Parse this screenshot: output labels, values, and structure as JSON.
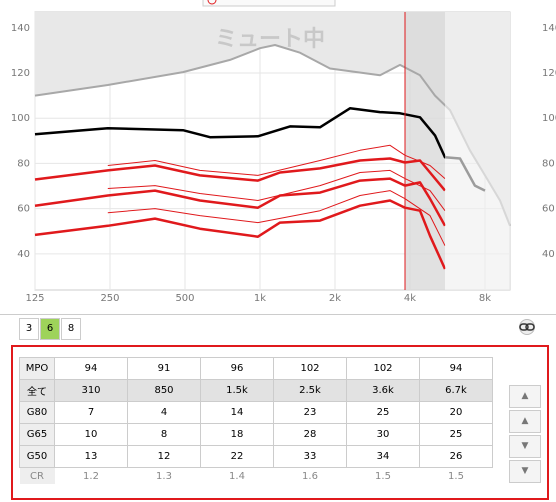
{
  "chart_data": {
    "type": "line",
    "annotation": "ミュート中",
    "xscale": "log",
    "xlim": [
      125,
      10080
    ],
    "ylim": [
      24,
      147
    ],
    "xticks": [
      125,
      250,
      500,
      {
        "value": 1000,
        "label": "1k"
      },
      {
        "value": 2000,
        "label": "2k"
      },
      {
        "value": 4000,
        "label": "4k"
      },
      {
        "value": 8000,
        "label": "8k"
      }
    ],
    "yticks": [
      40,
      60,
      80,
      100,
      120,
      140
    ],
    "grid": true,
    "series": [
      {
        "color": "#a8a8a8",
        "width": 2,
        "x": [
          125,
          245,
          491,
          758,
          1000,
          1149,
          1447,
          1910,
          3031,
          3647,
          4388,
          5040,
          5790,
          6960,
          8000,
          9190,
          10080
        ],
        "values": [
          110,
          114.7,
          120.4,
          125.8,
          131,
          132.4,
          129,
          122,
          119,
          123.6,
          119,
          110,
          103.6,
          85.8,
          74.7,
          63.6,
          52.4
        ]
      },
      {
        "color": "#000000",
        "width": 2.5,
        "x": [
          125,
          245,
          491,
          630,
          981,
          1320,
          1741,
          2297,
          3031,
          3647,
          4388,
          5040,
          5530,
          6350,
          7290,
          8000
        ],
        "values": [
          92.9,
          95.6,
          94.7,
          91.6,
          92,
          96.4,
          96,
          104.4,
          102.7,
          102.2,
          100.4,
          92.4,
          82.7,
          82.2,
          70.2,
          68
        ]
      },
      {
        "color": "#e0191c",
        "width": 2.5,
        "x": [
          125,
          245,
          379,
          574,
          981,
          1203,
          1741,
          2520,
          3325,
          3819,
          4388,
          4813,
          5530
        ],
        "values": [
          72.9,
          76.9,
          79.1,
          74.7,
          72.4,
          76,
          77.8,
          81.3,
          82.2,
          80.4,
          81.3,
          76,
          68
        ]
      },
      {
        "color": "#e0191c",
        "width": 2.5,
        "x": [
          125,
          245,
          379,
          574,
          981,
          1203,
          1741,
          2520,
          3325,
          3819,
          4388,
          4813,
          5530
        ],
        "values": [
          61.3,
          65.8,
          68,
          63.6,
          60.4,
          65.8,
          67.1,
          72.4,
          73.3,
          70.2,
          71.6,
          64.4,
          52.4
        ]
      },
      {
        "color": "#e0191c",
        "width": 2.5,
        "x": [
          125,
          245,
          379,
          574,
          981,
          1203,
          1741,
          2520,
          3325,
          3819,
          4388,
          4813,
          5530
        ],
        "values": [
          48.4,
          52.4,
          55.6,
          51.1,
          47.6,
          53.8,
          54.7,
          61.3,
          63.6,
          60.4,
          59.1,
          48,
          33.3
        ]
      },
      {
        "color": "#e0191c",
        "width": 1,
        "x": [
          245,
          379,
          574,
          981,
          1741,
          2520,
          3325,
          3819,
          4813,
          5530
        ],
        "values": [
          79.1,
          81.3,
          76.9,
          74.7,
          81.3,
          85.8,
          88,
          83.6,
          79.1,
          73.3
        ]
      },
      {
        "color": "#e0191c",
        "width": 1,
        "x": [
          245,
          379,
          574,
          981,
          1741,
          2520,
          3325,
          3819,
          4813,
          5530
        ],
        "values": [
          68.9,
          70.2,
          66.7,
          63.6,
          70.2,
          76,
          76.9,
          73.3,
          68,
          59.1
        ]
      },
      {
        "color": "#e0191c",
        "width": 1,
        "x": [
          245,
          379,
          574,
          981,
          1741,
          2520,
          3325,
          3819,
          4813,
          5530
        ],
        "values": [
          58.2,
          60,
          56.9,
          53.8,
          59.1,
          65.8,
          68,
          64.4,
          56.9,
          43.6
        ]
      }
    ]
  },
  "channels": {
    "options": [
      "3",
      "6",
      "8"
    ],
    "selected": 1
  },
  "table": {
    "rows": [
      {
        "label": "MPO",
        "cells": [
          "94",
          "91",
          "96",
          "102",
          "102",
          "94"
        ]
      },
      {
        "label": "全て",
        "cells": [
          "310",
          "850",
          "1.5k",
          "2.5k",
          "3.6k",
          "6.7k"
        ]
      },
      {
        "label": "G80",
        "cells": [
          "7",
          "4",
          "14",
          "23",
          "25",
          "20"
        ]
      },
      {
        "label": "G65",
        "cells": [
          "10",
          "8",
          "18",
          "28",
          "30",
          "25"
        ]
      },
      {
        "label": "G50",
        "cells": [
          "13",
          "12",
          "22",
          "33",
          "34",
          "26"
        ]
      },
      {
        "label": "CR",
        "cells": [
          "1.2",
          "1.3",
          "1.4",
          "1.6",
          "1.5",
          "1.5"
        ]
      }
    ]
  }
}
